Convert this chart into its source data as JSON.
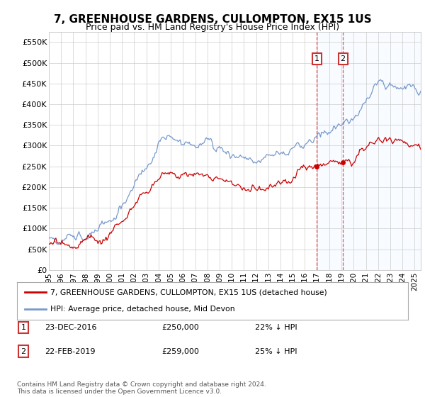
{
  "title": "7, GREENHOUSE GARDENS, CULLOMPTON, EX15 1US",
  "subtitle": "Price paid vs. HM Land Registry's House Price Index (HPI)",
  "title_fontsize": 11,
  "subtitle_fontsize": 9,
  "ylabel_ticks": [
    "£0",
    "£50K",
    "£100K",
    "£150K",
    "£200K",
    "£250K",
    "£300K",
    "£350K",
    "£400K",
    "£450K",
    "£500K",
    "£550K"
  ],
  "ylabel_values": [
    0,
    50000,
    100000,
    150000,
    200000,
    250000,
    300000,
    350000,
    400000,
    450000,
    500000,
    550000
  ],
  "ylim": [
    0,
    575000
  ],
  "hpi_color": "#7799cc",
  "price_color": "#cc0000",
  "purchase1_year": 2016.97,
  "purchase1_price": 250000,
  "purchase2_year": 2019.12,
  "purchase2_price": 259000,
  "purchase1_date": "23-DEC-2016",
  "purchase1_price_str": "£250,000",
  "purchase1_pct": "22% ↓ HPI",
  "purchase2_date": "22-FEB-2019",
  "purchase2_price_str": "£259,000",
  "purchase2_pct": "25% ↓ HPI",
  "legend_label1": "7, GREENHOUSE GARDENS, CULLOMPTON, EX15 1US (detached house)",
  "legend_label2": "HPI: Average price, detached house, Mid Devon",
  "footnote": "Contains HM Land Registry data © Crown copyright and database right 2024.\nThis data is licensed under the Open Government Licence v3.0.",
  "bg_color": "#ffffff",
  "grid_color": "#cccccc",
  "highlight_color": "#ddeeff",
  "shade_from": 2017.0,
  "shade_to": 2025.5,
  "xlim_left": 1995,
  "xlim_right": 2025.5
}
